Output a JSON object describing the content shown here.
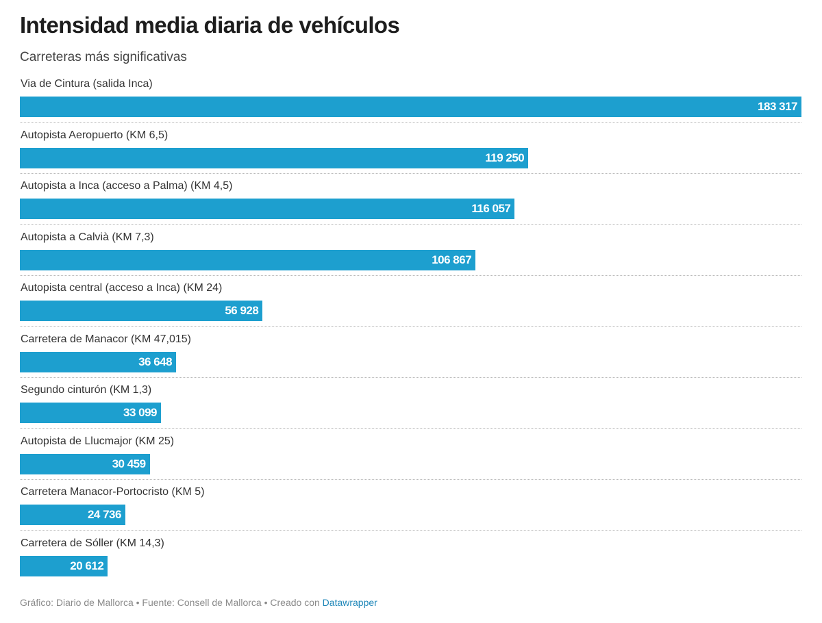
{
  "header": {
    "title": "Intensidad media diaria de vehículos",
    "subtitle": "Carreteras más significativas"
  },
  "chart_data": {
    "type": "bar",
    "orientation": "horizontal",
    "title": "Intensidad media diaria de vehículos",
    "subtitle": "Carreteras más significativas",
    "xlabel": "",
    "ylabel": "",
    "xlim": [
      0,
      183317
    ],
    "color": "#1d9fcf",
    "categories": [
      "Via de Cintura (salida Inca)",
      "Autopista Aeropuerto (KM 6,5)",
      "Autopista a Inca (acceso a Palma) (KM 4,5)",
      "Autopista a Calvià (KM 7,3)",
      "Autopista central (acceso a Inca) (KM 24)",
      "Carretera de Manacor (KM 47,015)",
      "Segundo cinturón (KM 1,3)",
      "Autopista de Llucmajor (KM 25)",
      "Carretera Manacor-Portocristo (KM 5)",
      "Carretera de Sóller (KM 14,3)"
    ],
    "values": [
      183317,
      119250,
      116057,
      106867,
      56928,
      36648,
      33099,
      30459,
      24736,
      20612
    ],
    "value_labels": [
      "183 317",
      "119 250",
      "116 057",
      "106 867",
      "56 928",
      "36 648",
      "33 099",
      "30 459",
      "24 736",
      "20 612"
    ]
  },
  "footer": {
    "text": "Gráfico: Diario de Mallorca • Fuente: Consell de Mallorca • Creado con",
    "link": "Datawrapper"
  }
}
